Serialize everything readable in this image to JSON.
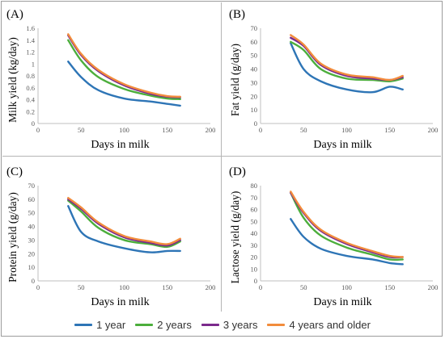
{
  "chart_data": [
    {
      "type": "line",
      "panel_label": "(A)",
      "xlabel": "Days in milk",
      "ylabel": "Milk yield (kg/day)",
      "xlim": [
        0,
        200
      ],
      "ylim": [
        0,
        1.6
      ],
      "xticks": [
        "0",
        "50",
        "100",
        "150",
        "200"
      ],
      "yticks": [
        "0",
        "0.2",
        "0.4",
        "0.6",
        "0.8",
        "1",
        "1.2",
        "1.4",
        "1.6"
      ],
      "x": [
        35,
        50,
        70,
        100,
        130,
        150,
        165
      ],
      "series": [
        {
          "name": "1 year",
          "values": [
            1.04,
            0.78,
            0.56,
            0.42,
            0.37,
            0.33,
            0.3
          ]
        },
        {
          "name": "2 years",
          "values": [
            1.4,
            1.06,
            0.78,
            0.58,
            0.47,
            0.42,
            0.41
          ]
        },
        {
          "name": "3 years",
          "values": [
            1.48,
            1.15,
            0.88,
            0.64,
            0.5,
            0.45,
            0.44
          ]
        },
        {
          "name": "4 years and older",
          "values": [
            1.5,
            1.17,
            0.9,
            0.66,
            0.52,
            0.46,
            0.45
          ]
        }
      ]
    },
    {
      "type": "line",
      "panel_label": "(B)",
      "xlabel": "Days in milk",
      "ylabel": "Fat yield (g/day)",
      "xlim": [
        0,
        200
      ],
      "ylim": [
        0,
        70
      ],
      "xticks": [
        "0",
        "50",
        "100",
        "150",
        "200"
      ],
      "yticks": [
        "0",
        "10",
        "20",
        "30",
        "40",
        "50",
        "60",
        "70"
      ],
      "x": [
        35,
        50,
        70,
        100,
        130,
        150,
        165
      ],
      "series": [
        {
          "name": "1 year",
          "values": [
            59,
            40,
            31,
            25,
            23,
            27,
            25
          ]
        },
        {
          "name": "2 years",
          "values": [
            60,
            54,
            40,
            33,
            32,
            31,
            33
          ]
        },
        {
          "name": "3 years",
          "values": [
            63,
            57,
            43,
            35,
            33,
            32,
            34
          ]
        },
        {
          "name": "4 years and older",
          "values": [
            65,
            58,
            44,
            36,
            34,
            32,
            35
          ]
        }
      ]
    },
    {
      "type": "line",
      "panel_label": "(C)",
      "xlabel": "Days in milk",
      "ylabel": "Protein yield (g/day)",
      "xlim": [
        0,
        200
      ],
      "ylim": [
        0,
        70
      ],
      "xticks": [
        "0",
        "50",
        "100",
        "150",
        "200"
      ],
      "yticks": [
        "0",
        "10",
        "20",
        "30",
        "40",
        "50",
        "60",
        "70"
      ],
      "x": [
        35,
        50,
        70,
        100,
        130,
        150,
        165
      ],
      "series": [
        {
          "name": "1 year",
          "values": [
            55,
            36,
            29,
            24,
            21,
            22,
            22
          ]
        },
        {
          "name": "2 years",
          "values": [
            59,
            51,
            39,
            30,
            27,
            25,
            29
          ]
        },
        {
          "name": "3 years",
          "values": [
            60,
            53,
            42,
            32,
            28,
            26,
            30
          ]
        },
        {
          "name": "4 years and older",
          "values": [
            61,
            54,
            43,
            33,
            29,
            27,
            31
          ]
        }
      ]
    },
    {
      "type": "line",
      "panel_label": "(D)",
      "xlabel": "Days in milk",
      "ylabel": "Lactose yield (g/day)",
      "xlim": [
        0,
        200
      ],
      "ylim": [
        0,
        80
      ],
      "xticks": [
        "0",
        "50",
        "100",
        "150",
        "200"
      ],
      "yticks": [
        "0",
        "10",
        "20",
        "30",
        "40",
        "50",
        "60",
        "70",
        "80"
      ],
      "x": [
        35,
        50,
        70,
        100,
        130,
        150,
        165
      ],
      "series": [
        {
          "name": "1 year",
          "values": [
            52,
            37,
            27,
            21,
            18,
            15,
            14
          ]
        },
        {
          "name": "2 years",
          "values": [
            74,
            53,
            38,
            28,
            22,
            18,
            18
          ]
        },
        {
          "name": "3 years",
          "values": [
            74,
            57,
            42,
            31,
            24,
            20,
            20
          ]
        },
        {
          "name": "4 years and older",
          "values": [
            75,
            58,
            43,
            32,
            25,
            21,
            20
          ]
        }
      ]
    }
  ],
  "legend": [
    {
      "label": "1 year",
      "color": "#2e75b6"
    },
    {
      "label": "2 years",
      "color": "#4cae3c"
    },
    {
      "label": "3 years",
      "color": "#7b2a8c"
    },
    {
      "label": "4 years and older",
      "color": "#f28c3c"
    }
  ]
}
